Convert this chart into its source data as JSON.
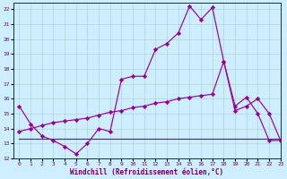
{
  "xlabel": "Windchill (Refroidissement éolien,°C)",
  "xlim": [
    -0.5,
    23
  ],
  "ylim": [
    12,
    22.4
  ],
  "yticks": [
    12,
    13,
    14,
    15,
    16,
    17,
    18,
    19,
    20,
    21,
    22
  ],
  "xticks": [
    0,
    1,
    2,
    3,
    4,
    5,
    6,
    7,
    8,
    9,
    10,
    11,
    12,
    13,
    14,
    15,
    16,
    17,
    18,
    19,
    20,
    21,
    22,
    23
  ],
  "bg_color": "#cceeff",
  "grid_color": "#aacccc",
  "line_color": "#990099",
  "line1_x": [
    0,
    1,
    2,
    3,
    4,
    5,
    6,
    7,
    8,
    9,
    10,
    11,
    12,
    13,
    14,
    15,
    16,
    17,
    18,
    19,
    20,
    21,
    22,
    23
  ],
  "line1_y": [
    15.5,
    14.3,
    13.5,
    13.2,
    12.8,
    12.3,
    13.0,
    14.0,
    13.8,
    17.3,
    17.5,
    17.5,
    19.3,
    19.7,
    20.4,
    22.2,
    21.3,
    22.1,
    18.5,
    15.5,
    16.1,
    15.0,
    13.2,
    13.2
  ],
  "line2_x": [
    0,
    1,
    2,
    3,
    4,
    5,
    6,
    7,
    8,
    9,
    10,
    11,
    12,
    13,
    14,
    15,
    16,
    17,
    18,
    19,
    20,
    21,
    22,
    23
  ],
  "line2_y": [
    13.8,
    14.0,
    14.2,
    14.4,
    14.5,
    14.6,
    14.7,
    14.9,
    15.1,
    15.2,
    15.4,
    15.5,
    15.7,
    15.8,
    16.0,
    16.1,
    16.2,
    16.3,
    18.5,
    15.2,
    15.5,
    16.0,
    15.0,
    13.2
  ],
  "line3_x": [
    0,
    1,
    2,
    3,
    4,
    5,
    6,
    7,
    8,
    9,
    10,
    11,
    12,
    13,
    14,
    15,
    16,
    17,
    18,
    19,
    20,
    21,
    22,
    23
  ],
  "line3_y": [
    13.3,
    13.3,
    13.3,
    13.3,
    13.3,
    13.3,
    13.3,
    13.3,
    13.3,
    13.3,
    13.3,
    13.3,
    13.3,
    13.3,
    13.3,
    13.3,
    13.3,
    13.3,
    13.3,
    13.3,
    13.3,
    13.3,
    13.3,
    13.3
  ]
}
